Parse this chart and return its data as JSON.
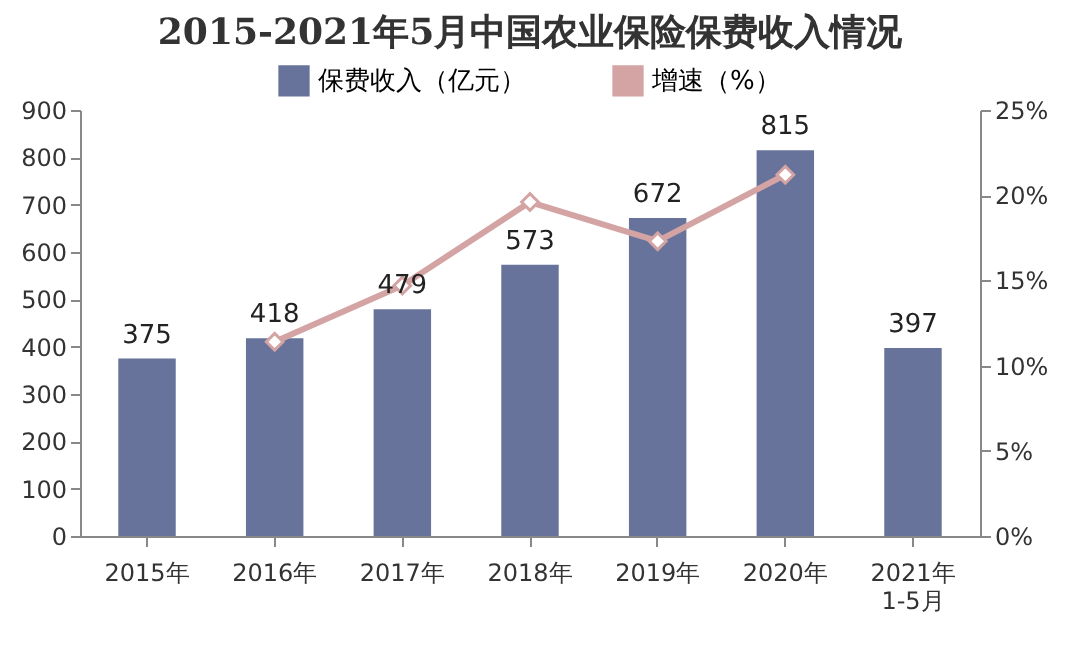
{
  "chart_data": {
    "type": "bar",
    "title": "2015-2021年5月中国农业保险保费收入情况",
    "categories": [
      "2015年",
      "2016年",
      "2017年",
      "2018年",
      "2019年",
      "2020年",
      "2021年\n1-5月"
    ],
    "series": [
      {
        "name": "保费收入（亿元）",
        "color": "#67739a",
        "values": [
          375,
          418,
          479,
          573,
          672,
          815,
          397
        ],
        "value_labels": [
          "375",
          "418",
          "479",
          "573",
          "672",
          "815",
          "397"
        ]
      },
      {
        "name": "增速（%）",
        "type": "line",
        "axis": "y2",
        "color": "#d4a3a3",
        "marker": "diamond",
        "values": [
          null,
          11.4,
          14.7,
          19.6,
          17.3,
          21.2,
          null
        ]
      }
    ],
    "ylim": [
      0,
      900
    ],
    "yticks": [
      0,
      100,
      200,
      300,
      400,
      500,
      600,
      700,
      800,
      900
    ],
    "y2lim": [
      0,
      25
    ],
    "y2ticks": [
      {
        "value": 0,
        "label": "0%"
      },
      {
        "value": 5,
        "label": "5%"
      },
      {
        "value": 10,
        "label": "10%"
      },
      {
        "value": 15,
        "label": "15%"
      },
      {
        "value": 20,
        "label": "20%"
      },
      {
        "value": 25,
        "label": "25%"
      }
    ],
    "legend": "top"
  }
}
